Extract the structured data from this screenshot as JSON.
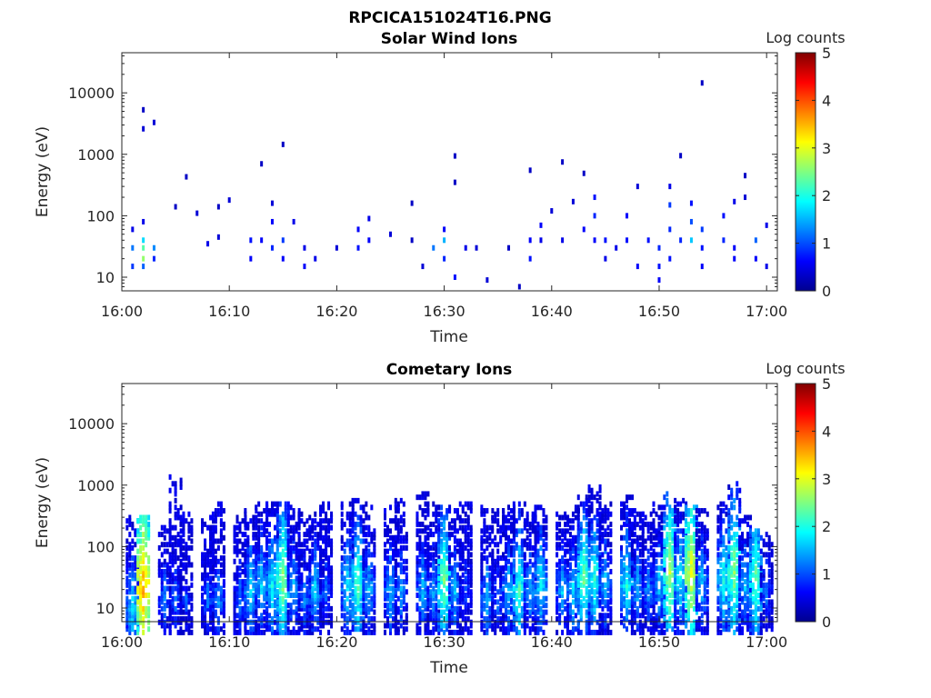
{
  "figure_title": "RPCICA151024T16.PNG",
  "colormap": [
    "#00008f",
    "#0000ff",
    "#0080ff",
    "#00ffff",
    "#80ff80",
    "#ffff00",
    "#ff8000",
    "#ff0000",
    "#800000"
  ],
  "chart_data": [
    {
      "type": "heatmap",
      "title": "Solar Wind Ions",
      "xlabel": "Time",
      "ylabel": "Energy (eV)",
      "y_scale": "log",
      "ylim": [
        6,
        45000
      ],
      "xlim": [
        "16:00",
        "17:01"
      ],
      "x_ticks": [
        "16:00",
        "16:10",
        "16:20",
        "16:30",
        "16:40",
        "16:50",
        "17:00"
      ],
      "y_ticks": [
        "10",
        "100",
        "1000",
        "10000"
      ],
      "grid": false,
      "colorbar": {
        "label": "Log counts",
        "range": [
          0,
          5
        ],
        "ticks": [
          "0",
          "1",
          "2",
          "3",
          "4",
          "5"
        ]
      },
      "cells": [
        [
          "16:01",
          30,
          1.2
        ],
        [
          "16:01",
          60,
          0.5
        ],
        [
          "16:01",
          15,
          0.9
        ],
        [
          "16:02",
          30,
          2.3
        ],
        [
          "16:02",
          20,
          2.6
        ],
        [
          "16:02",
          40,
          1.7
        ],
        [
          "16:02",
          15,
          1.1
        ],
        [
          "16:02",
          80,
          0.5
        ],
        [
          "16:03",
          30,
          1.3
        ],
        [
          "16:03",
          20,
          0.8
        ],
        [
          "16:02",
          2600,
          0.4
        ],
        [
          "16:02",
          5300,
          0.3
        ],
        [
          "16:03",
          3300,
          0.4
        ],
        [
          "16:05",
          140,
          0.3
        ],
        [
          "16:06",
          430,
          0.3
        ],
        [
          "16:07",
          110,
          0.4
        ],
        [
          "16:08",
          35,
          0.5
        ],
        [
          "16:09",
          140,
          0.3
        ],
        [
          "16:09",
          45,
          0.4
        ],
        [
          "16:10",
          180,
          0.4
        ],
        [
          "16:12",
          20,
          0.6
        ],
        [
          "16:12",
          40,
          0.7
        ],
        [
          "16:13",
          40,
          0.6
        ],
        [
          "16:13",
          700,
          0.3
        ],
        [
          "16:14",
          160,
          0.4
        ],
        [
          "16:14",
          80,
          0.6
        ],
        [
          "16:14",
          30,
          0.8
        ],
        [
          "16:15",
          40,
          0.9
        ],
        [
          "16:15",
          20,
          0.6
        ],
        [
          "16:15",
          1450,
          0.3
        ],
        [
          "16:16",
          80,
          0.5
        ],
        [
          "16:17",
          30,
          0.5
        ],
        [
          "16:17",
          15,
          0.6
        ],
        [
          "16:18",
          20,
          0.5
        ],
        [
          "16:20",
          30,
          0.4
        ],
        [
          "16:22",
          60,
          0.6
        ],
        [
          "16:22",
          30,
          0.7
        ],
        [
          "16:23",
          90,
          0.5
        ],
        [
          "16:23",
          40,
          0.6
        ],
        [
          "16:25",
          50,
          0.4
        ],
        [
          "16:27",
          40,
          0.3
        ],
        [
          "16:27",
          160,
          0.3
        ],
        [
          "16:28",
          15,
          0.4
        ],
        [
          "16:29",
          30,
          1.2
        ],
        [
          "16:30",
          40,
          1.5
        ],
        [
          "16:30",
          20,
          0.8
        ],
        [
          "16:30",
          60,
          0.6
        ],
        [
          "16:31",
          10,
          0.7
        ],
        [
          "16:31",
          940,
          0.3
        ],
        [
          "16:31",
          350,
          0.3
        ],
        [
          "16:32",
          30,
          0.5
        ],
        [
          "16:33",
          30,
          0.4
        ],
        [
          "16:34",
          9,
          0.4
        ],
        [
          "16:36",
          30,
          0.3
        ],
        [
          "16:37",
          7,
          0.3
        ],
        [
          "16:38",
          20,
          0.7
        ],
        [
          "16:38",
          40,
          0.6
        ],
        [
          "16:38",
          550,
          0.3
        ],
        [
          "16:39",
          70,
          0.6
        ],
        [
          "16:39",
          40,
          0.5
        ],
        [
          "16:40",
          120,
          0.4
        ],
        [
          "16:41",
          750,
          0.3
        ],
        [
          "16:41",
          40,
          0.5
        ],
        [
          "16:42",
          170,
          0.4
        ],
        [
          "16:43",
          60,
          0.6
        ],
        [
          "16:43",
          490,
          0.3
        ],
        [
          "16:44",
          200,
          0.7
        ],
        [
          "16:44",
          100,
          0.8
        ],
        [
          "16:44",
          40,
          0.6
        ],
        [
          "16:45",
          40,
          0.7
        ],
        [
          "16:45",
          20,
          0.5
        ],
        [
          "16:46",
          30,
          0.5
        ],
        [
          "16:47",
          100,
          0.6
        ],
        [
          "16:47",
          40,
          0.7
        ],
        [
          "16:48",
          300,
          0.4
        ],
        [
          "16:48",
          15,
          0.6
        ],
        [
          "16:49",
          40,
          0.7
        ],
        [
          "16:50",
          30,
          0.8
        ],
        [
          "16:50",
          15,
          0.7
        ],
        [
          "16:50",
          9,
          0.6
        ],
        [
          "16:51",
          150,
          0.9
        ],
        [
          "16:51",
          60,
          0.8
        ],
        [
          "16:51",
          300,
          0.5
        ],
        [
          "16:51",
          20,
          0.7
        ],
        [
          "16:52",
          950,
          0.3
        ],
        [
          "16:52",
          40,
          0.8
        ],
        [
          "16:53",
          40,
          1.6
        ],
        [
          "16:53",
          80,
          1.0
        ],
        [
          "16:53",
          160,
          0.7
        ],
        [
          "16:54",
          60,
          0.9
        ],
        [
          "16:54",
          30,
          0.7
        ],
        [
          "16:54",
          15,
          0.6
        ],
        [
          "16:54",
          14500,
          0.3
        ],
        [
          "16:56",
          100,
          0.7
        ],
        [
          "16:56",
          40,
          0.8
        ],
        [
          "16:57",
          20,
          0.6
        ],
        [
          "16:57",
          170,
          0.5
        ],
        [
          "16:57",
          30,
          0.6
        ],
        [
          "16:58",
          200,
          0.4
        ],
        [
          "16:58",
          450,
          0.3
        ],
        [
          "16:59",
          40,
          1.1
        ],
        [
          "16:59",
          20,
          0.6
        ],
        [
          "17:00",
          70,
          0.5
        ],
        [
          "17:00",
          15,
          0.5
        ]
      ]
    },
    {
      "type": "heatmap",
      "title": "Cometary Ions",
      "xlabel": "Time",
      "ylabel": "Energy (eV)",
      "y_scale": "log",
      "ylim": [
        6,
        45000
      ],
      "xlim": [
        "16:00",
        "17:01"
      ],
      "x_ticks": [
        "16:00",
        "16:10",
        "16:20",
        "16:30",
        "16:40",
        "16:50",
        "17:00"
      ],
      "y_ticks": [
        "10",
        "100",
        "1000",
        "10000"
      ],
      "grid": false,
      "colorbar": {
        "label": "Log counts",
        "range": [
          0,
          5
        ],
        "ticks": [
          "0",
          "1",
          "2",
          "3",
          "4",
          "5"
        ]
      },
      "bursts": [
        [
          "16:01",
          1.8,
          10,
          4,
          300
        ],
        [
          "16:02",
          3.6,
          22,
          4,
          300
        ],
        [
          "16:04",
          1.3,
          15,
          4,
          250
        ],
        [
          "16:05",
          1.2,
          15,
          4,
          1400
        ],
        [
          "16:06",
          1.0,
          15,
          4,
          350
        ],
        [
          "16:08",
          1.2,
          15,
          4,
          400
        ],
        [
          "16:09",
          1.4,
          15,
          4,
          500
        ],
        [
          "16:11",
          1.2,
          15,
          4,
          300
        ],
        [
          "16:12",
          1.8,
          20,
          4,
          400
        ],
        [
          "16:13",
          1.7,
          25,
          4,
          500
        ],
        [
          "16:14",
          1.9,
          25,
          4,
          550
        ],
        [
          "16:15",
          2.6,
          30,
          4,
          500
        ],
        [
          "16:16",
          1.6,
          20,
          4,
          450
        ],
        [
          "16:17",
          1.3,
          15,
          4,
          350
        ],
        [
          "16:18",
          1.7,
          20,
          4,
          350
        ],
        [
          "16:19",
          1.2,
          20,
          4,
          550
        ],
        [
          "16:21",
          1.8,
          25,
          4,
          500
        ],
        [
          "16:22",
          2.3,
          25,
          4,
          600
        ],
        [
          "16:23",
          1.6,
          20,
          4,
          500
        ],
        [
          "16:25",
          1.6,
          20,
          4,
          450
        ],
        [
          "16:26",
          1.4,
          20,
          4,
          600
        ],
        [
          "16:28",
          1.6,
          20,
          4,
          750
        ],
        [
          "16:29",
          1.4,
          20,
          4,
          500
        ],
        [
          "16:30",
          2.5,
          30,
          4,
          450
        ],
        [
          "16:31",
          1.6,
          20,
          4,
          450
        ],
        [
          "16:32",
          1.1,
          20,
          4,
          500
        ],
        [
          "16:34",
          1.6,
          15,
          4,
          450
        ],
        [
          "16:35",
          1.2,
          15,
          4,
          400
        ],
        [
          "16:36",
          1.6,
          20,
          4,
          450
        ],
        [
          "16:37",
          2.2,
          20,
          4,
          500
        ],
        [
          "16:38",
          1.5,
          20,
          4,
          350
        ],
        [
          "16:39",
          1.9,
          25,
          4,
          450
        ],
        [
          "16:41",
          1.6,
          20,
          4,
          350
        ],
        [
          "16:42",
          1.7,
          20,
          4,
          450
        ],
        [
          "16:43",
          2.4,
          30,
          4,
          650
        ],
        [
          "16:44",
          2.1,
          30,
          4,
          1000
        ],
        [
          "16:45",
          1.6,
          25,
          4,
          500
        ],
        [
          "16:47",
          2.0,
          25,
          4,
          650
        ],
        [
          "16:48",
          1.5,
          20,
          4,
          400
        ],
        [
          "16:49",
          1.4,
          20,
          4,
          350
        ],
        [
          "16:50",
          1.6,
          25,
          4,
          500
        ],
        [
          "16:51",
          2.8,
          40,
          4,
          750
        ],
        [
          "16:52",
          1.9,
          30,
          4,
          600
        ],
        [
          "16:53",
          3.1,
          40,
          4,
          450
        ],
        [
          "16:54",
          1.6,
          25,
          4,
          400
        ],
        [
          "16:56",
          2.0,
          30,
          4,
          500
        ],
        [
          "16:57",
          2.6,
          40,
          4,
          1100
        ],
        [
          "16:58",
          1.6,
          25,
          4,
          300
        ],
        [
          "16:59",
          2.4,
          30,
          4,
          200
        ],
        [
          "17:00",
          1.2,
          20,
          4,
          200
        ]
      ]
    }
  ]
}
